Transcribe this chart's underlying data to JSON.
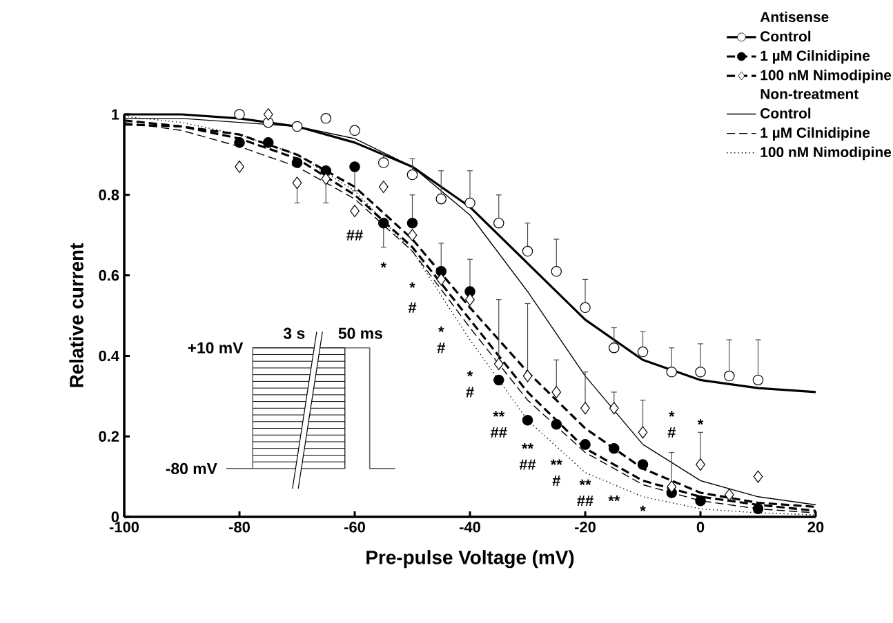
{
  "chart_data": {
    "type": "scatter",
    "xlabel": "Pre-pulse Voltage (mV)",
    "ylabel": "Relative current",
    "xlim": [
      -100,
      20
    ],
    "xticks": [
      -100,
      -80,
      -60,
      -40,
      -20,
      0,
      20
    ],
    "ylim": [
      0,
      1
    ],
    "yticks": [
      0,
      0.2,
      0.4,
      0.6,
      0.8,
      1
    ],
    "legend": "top right",
    "series": [
      {
        "name": "Control",
        "marker": "circle",
        "color": "#ffffff",
        "line_style": "solid",
        "x": [
          -80,
          -75,
          -70,
          -65,
          -60,
          -55,
          -50,
          -45,
          -40,
          -35,
          -30,
          -25,
          -20,
          -15,
          -10,
          -5,
          0,
          5,
          10
        ],
        "values": [
          1.0,
          0.98,
          0.97,
          0.99,
          0.96,
          0.88,
          0.85,
          0.79,
          0.78,
          0.73,
          0.66,
          0.61,
          0.52,
          0.42,
          0.41,
          0.36,
          0.36,
          0.35,
          0.34
        ],
        "errors": [
          null,
          null,
          null,
          null,
          null,
          [
            0.88,
            0.9
          ],
          [
            0.85,
            0.89
          ],
          [
            0.79,
            0.86
          ],
          [
            0.78,
            0.86
          ],
          [
            0.73,
            0.8
          ],
          [
            0.66,
            0.73
          ],
          [
            0.61,
            0.69
          ],
          [
            0.52,
            0.59
          ],
          [
            0.42,
            0.47
          ],
          [
            0.41,
            0.46
          ],
          [
            0.36,
            0.42
          ],
          [
            0.36,
            0.43
          ],
          [
            0.35,
            0.44
          ],
          [
            0.34,
            0.44
          ]
        ]
      },
      {
        "type": "line",
        "color": "#000000",
        "line_style": "solid",
        "x": [
          -100,
          -90,
          -80,
          -70,
          -60,
          -50,
          -40,
          -30,
          -20,
          -10,
          0,
          10,
          20
        ],
        "values": [
          1.0,
          1.0,
          0.99,
          0.97,
          0.93,
          0.87,
          0.77,
          0.63,
          0.49,
          0.39,
          0.34,
          0.32,
          0.31
        ]
      },
      {
        "name": "1 µM Cilnidipine",
        "marker": "circle",
        "color": "#000000",
        "line_style": "dashed",
        "x": [
          -80,
          -75,
          -70,
          -65,
          -60,
          -55,
          -50,
          -45,
          -40,
          -35,
          -30,
          -25,
          -20,
          -15,
          -10,
          -5,
          0,
          5,
          10
        ],
        "values": [
          0.93,
          0.93,
          0.88,
          0.86,
          0.87,
          0.73,
          0.73,
          0.61,
          0.56,
          0.34,
          0.24,
          0.23,
          0.18,
          0.17,
          0.13,
          0.06,
          0.04,
          null,
          0.02
        ],
        "errors": [
          null,
          null,
          null,
          null,
          [
            0.81,
            0.87
          ],
          [
            0.67,
            0.73
          ],
          [
            0.73,
            0.8
          ],
          null,
          null,
          null,
          null,
          null,
          null,
          null,
          null,
          null,
          null,
          null,
          null
        ]
      },
      {
        "type": "line",
        "color": "#000000",
        "line_style": "dashed",
        "x": [
          -100,
          -90,
          -80,
          -70,
          -60,
          -50,
          -40,
          -30,
          -20,
          -10,
          0,
          10,
          20
        ],
        "values": [
          0.975,
          0.97,
          0.94,
          0.89,
          0.8,
          0.67,
          0.49,
          0.31,
          0.17,
          0.09,
          0.05,
          0.03,
          0.015
        ]
      },
      {
        "name": "100 nM Nimodipine",
        "marker": "diamond",
        "color": "#ffffff",
        "line_style": "dashed",
        "x": [
          -80,
          -75,
          -70,
          -65,
          -60,
          -55,
          -50,
          -45,
          -40,
          -35,
          -30,
          -25,
          -20,
          -15,
          -10,
          -5,
          0,
          5,
          10
        ],
        "values": [
          0.87,
          1.0,
          0.83,
          0.84,
          0.76,
          0.82,
          0.7,
          0.59,
          0.54,
          0.38,
          0.35,
          0.31,
          0.27,
          0.27,
          0.21,
          0.075,
          0.13,
          0.055,
          0.1
        ],
        "errors": [
          null,
          null,
          [
            0.78,
            0.83
          ],
          [
            0.78,
            0.84
          ],
          null,
          null,
          null,
          [
            0.59,
            0.68
          ],
          [
            0.54,
            0.64
          ],
          [
            0.38,
            0.54
          ],
          [
            0.35,
            0.53
          ],
          [
            0.31,
            0.39
          ],
          [
            0.27,
            0.36
          ],
          [
            0.27,
            0.31
          ],
          [
            0.21,
            0.29
          ],
          [
            0.075,
            0.16
          ],
          [
            0.13,
            0.21
          ],
          null,
          null
        ]
      },
      {
        "type": "line",
        "color": "#000000",
        "line_style": "dashed",
        "x": [
          -100,
          -90,
          -80,
          -70,
          -60,
          -50,
          -40,
          -30,
          -20,
          -10,
          0,
          10,
          20
        ],
        "values": [
          0.985,
          0.97,
          0.95,
          0.9,
          0.82,
          0.69,
          0.52,
          0.36,
          0.22,
          0.12,
          0.06,
          0.035,
          0.025
        ]
      },
      {
        "name": "Control",
        "type": "line",
        "color": "#000000",
        "line_style": "solid",
        "x": [
          -100,
          -90,
          -80,
          -70,
          -60,
          -50,
          -40,
          -30,
          -20,
          -10,
          0,
          10,
          20
        ],
        "values": [
          0.99,
          0.99,
          0.98,
          0.97,
          0.94,
          0.87,
          0.75,
          0.56,
          0.35,
          0.18,
          0.09,
          0.05,
          0.03
        ]
      },
      {
        "name": "1 µM Cilnidipine",
        "type": "line",
        "color": "#000000",
        "line_style": "dashed",
        "x": [
          -100,
          -90,
          -80,
          -70,
          -60,
          -50,
          -40,
          -30,
          -20,
          -10,
          0,
          10,
          20
        ],
        "values": [
          0.98,
          0.96,
          0.92,
          0.87,
          0.79,
          0.66,
          0.47,
          0.29,
          0.16,
          0.08,
          0.04,
          0.02,
          0.01
        ]
      },
      {
        "name": "100 nM Nimodipine",
        "type": "line",
        "color": "#000000",
        "line_style": "dotted",
        "x": [
          -100,
          -90,
          -80,
          -70,
          -60,
          -50,
          -40,
          -30,
          -20,
          -10,
          0,
          10,
          20
        ],
        "values": [
          0.995,
          0.98,
          0.95,
          0.9,
          0.81,
          0.66,
          0.44,
          0.24,
          0.11,
          0.05,
          0.02,
          0.01,
          0.005
        ]
      }
    ],
    "annotations": [
      "Antisense",
      "Non-treatment",
      "+10 mV",
      "-80 mV",
      "3 s",
      "50 ms",
      "##",
      "*",
      "*",
      "#",
      "*",
      "#",
      "*",
      "#",
      "**",
      "##",
      "**",
      "##",
      "**",
      "#",
      "**",
      "##",
      "**",
      "*",
      "*",
      "#",
      "*"
    ]
  }
}
